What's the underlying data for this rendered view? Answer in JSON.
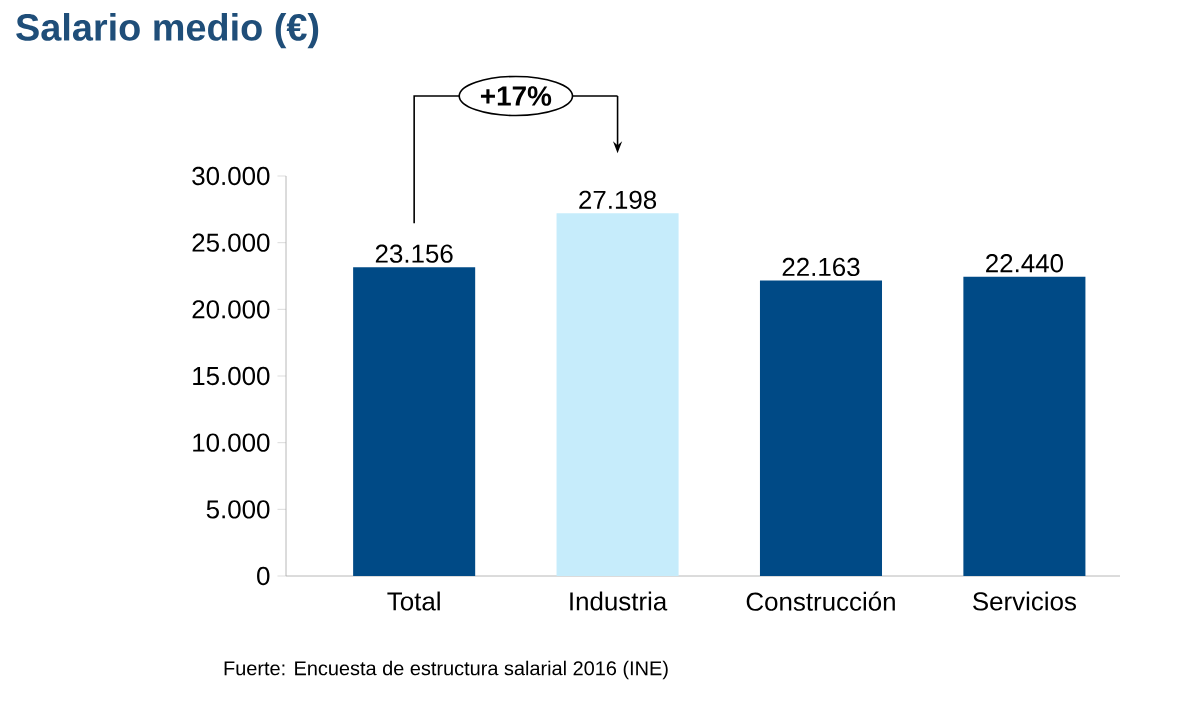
{
  "chart_data": {
    "type": "bar",
    "title": "Salario medio (€)",
    "categories": [
      "Total",
      "Industria",
      "Construcción",
      "Servicios"
    ],
    "values": [
      23156,
      27198,
      22163,
      22440
    ],
    "colors": [
      "#004a86",
      "#c6ecfb",
      "#004a86",
      "#004a86"
    ],
    "value_labels": [
      "23.156",
      "27.198",
      "22.163",
      "22.440"
    ],
    "ylim": [
      0,
      30000
    ],
    "yticks": [
      {
        "value": 0,
        "label": "0"
      },
      {
        "value": 5000,
        "label": "5.000"
      },
      {
        "value": 10000,
        "label": "10.000"
      },
      {
        "value": 15000,
        "label": "15.000"
      },
      {
        "value": 20000,
        "label": "20.000"
      },
      {
        "value": 25000,
        "label": "25.000"
      },
      {
        "value": 30000,
        "label": "30.000"
      }
    ],
    "annotations": [
      "+17%",
      "Fuerte: Encuesta de estructura salarial 2016 (INE)"
    ]
  }
}
